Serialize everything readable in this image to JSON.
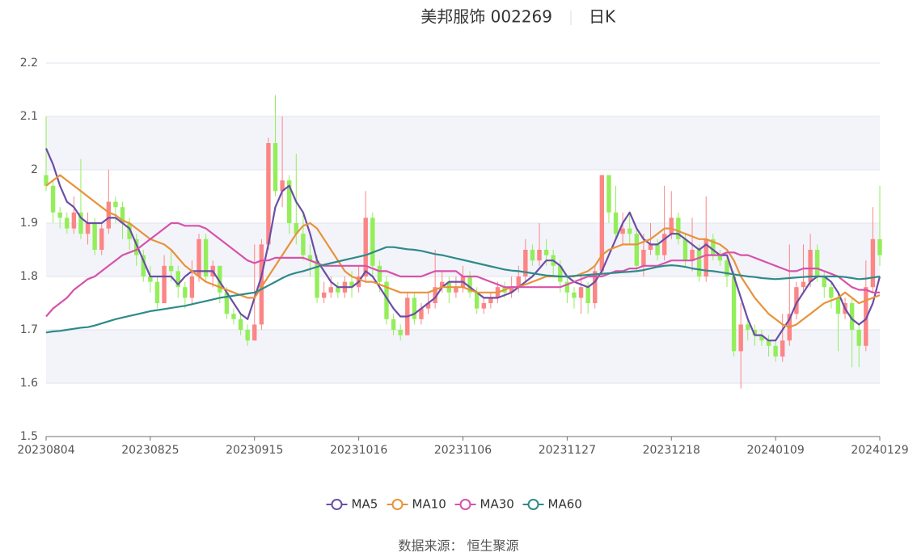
{
  "chart_data": {
    "type": "candlestick",
    "title": "美邦服饰 002269",
    "subtitle": "日K",
    "source": "数据来源：  恒生聚源",
    "categories": [
      "20230804",
      null,
      null,
      null,
      null,
      null,
      null,
      null,
      null,
      null,
      null,
      null,
      null,
      null,
      null,
      "20230825",
      null,
      null,
      null,
      null,
      null,
      null,
      null,
      null,
      null,
      null,
      null,
      null,
      null,
      null,
      "20230915",
      null,
      null,
      null,
      null,
      null,
      null,
      null,
      null,
      null,
      null,
      null,
      null,
      null,
      null,
      "20231016",
      null,
      null,
      null,
      null,
      null,
      null,
      null,
      null,
      null,
      null,
      null,
      null,
      null,
      null,
      "20231106",
      null,
      null,
      null,
      null,
      null,
      null,
      null,
      null,
      null,
      null,
      null,
      null,
      null,
      null,
      "20231127",
      null,
      null,
      null,
      null,
      null,
      null,
      null,
      null,
      null,
      null,
      null,
      null,
      null,
      null,
      "20231218",
      null,
      null,
      null,
      null,
      null,
      null,
      null,
      null,
      null,
      null,
      null,
      null,
      null,
      null,
      "20240109",
      null,
      null,
      null,
      null,
      null,
      null,
      null,
      null,
      null,
      null,
      null,
      null,
      null,
      null,
      "20240129"
    ],
    "open": [
      1.99,
      1.97,
      1.92,
      1.91,
      1.89,
      1.92,
      1.88,
      1.9,
      1.85,
      1.89,
      1.94,
      1.93,
      1.9,
      1.87,
      1.84,
      1.8,
      1.79,
      1.75,
      1.82,
      1.81,
      1.78,
      1.76,
      1.8,
      1.87,
      1.8,
      1.82,
      1.77,
      1.73,
      1.72,
      1.7,
      1.68,
      1.71,
      1.86,
      2.05,
      1.96,
      1.98,
      1.9,
      1.88,
      1.84,
      1.83,
      1.76,
      1.77,
      1.78,
      1.77,
      1.79,
      1.78,
      1.8,
      1.91,
      1.82,
      1.79,
      1.72,
      1.7,
      1.69,
      1.76,
      1.72,
      1.74,
      1.75,
      1.78,
      1.79,
      1.77,
      1.78,
      1.8,
      1.77,
      1.74,
      1.75,
      1.76,
      1.78,
      1.77,
      1.78,
      1.8,
      1.85,
      1.83,
      1.85,
      1.84,
      1.82,
      1.79,
      1.77,
      1.76,
      1.78,
      1.75,
      1.81,
      1.99,
      1.92,
      1.88,
      1.89,
      1.88,
      1.82,
      1.85,
      1.86,
      1.84,
      1.88,
      1.91,
      1.87,
      1.83,
      1.85,
      1.8,
      1.87,
      1.84,
      1.83,
      1.8,
      1.66,
      1.71,
      1.7,
      1.69,
      1.68,
      1.67,
      1.65,
      1.68,
      1.73,
      1.78,
      1.79,
      1.85,
      1.8,
      1.78,
      1.76,
      1.73,
      1.75,
      1.7,
      1.67,
      1.78,
      1.87
    ],
    "high": [
      2.1,
      1.98,
      1.93,
      1.92,
      1.95,
      2.02,
      1.92,
      1.91,
      1.9,
      2.0,
      1.95,
      1.94,
      1.91,
      1.88,
      1.85,
      1.82,
      1.8,
      1.84,
      1.85,
      1.82,
      1.79,
      1.83,
      1.88,
      1.88,
      1.83,
      1.82,
      1.78,
      1.74,
      1.73,
      1.71,
      1.86,
      1.87,
      2.06,
      2.14,
      2.1,
      1.99,
      2.03,
      1.92,
      1.86,
      1.84,
      1.79,
      1.8,
      1.79,
      1.8,
      1.81,
      1.82,
      1.96,
      1.92,
      1.83,
      1.8,
      1.73,
      1.71,
      1.77,
      1.77,
      1.75,
      1.77,
      1.85,
      1.81,
      1.8,
      1.8,
      1.82,
      1.81,
      1.78,
      1.76,
      1.77,
      1.79,
      1.79,
      1.8,
      1.82,
      1.87,
      1.86,
      1.9,
      1.87,
      1.85,
      1.83,
      1.8,
      1.78,
      1.8,
      1.79,
      1.82,
      1.99,
      1.99,
      1.97,
      1.92,
      1.92,
      1.89,
      1.88,
      1.9,
      1.87,
      1.97,
      1.96,
      1.92,
      1.88,
      1.91,
      1.86,
      1.95,
      1.88,
      1.85,
      1.84,
      1.81,
      1.75,
      1.72,
      1.71,
      1.7,
      1.69,
      1.68,
      1.73,
      1.86,
      1.79,
      1.86,
      1.88,
      1.86,
      1.81,
      1.79,
      1.77,
      1.76,
      1.76,
      1.71,
      1.83,
      1.93,
      1.97
    ],
    "low": [
      1.96,
      1.9,
      1.89,
      1.88,
      1.88,
      1.87,
      1.86,
      1.84,
      1.84,
      1.88,
      1.9,
      1.87,
      1.85,
      1.82,
      1.79,
      1.77,
      1.74,
      1.75,
      1.79,
      1.76,
      1.74,
      1.75,
      1.79,
      1.79,
      1.78,
      1.75,
      1.72,
      1.71,
      1.69,
      1.67,
      1.68,
      1.7,
      1.85,
      1.95,
      1.93,
      1.88,
      1.86,
      1.83,
      1.8,
      1.75,
      1.75,
      1.76,
      1.76,
      1.76,
      1.76,
      1.77,
      1.79,
      1.8,
      1.77,
      1.71,
      1.69,
      1.68,
      1.69,
      1.71,
      1.71,
      1.73,
      1.74,
      1.77,
      1.75,
      1.76,
      1.77,
      1.76,
      1.73,
      1.73,
      1.74,
      1.75,
      1.76,
      1.76,
      1.77,
      1.79,
      1.82,
      1.82,
      1.82,
      1.8,
      1.77,
      1.75,
      1.74,
      1.73,
      1.73,
      1.74,
      1.8,
      1.9,
      1.87,
      1.86,
      1.86,
      1.81,
      1.8,
      1.84,
      1.83,
      1.83,
      1.87,
      1.86,
      1.82,
      1.81,
      1.79,
      1.79,
      1.83,
      1.82,
      1.78,
      1.65,
      1.59,
      1.68,
      1.67,
      1.67,
      1.65,
      1.64,
      1.64,
      1.67,
      1.72,
      1.77,
      1.78,
      1.79,
      1.76,
      1.74,
      1.66,
      1.72,
      1.63,
      1.63,
      1.66,
      1.77,
      1.82
    ],
    "close": [
      1.97,
      1.92,
      1.91,
      1.89,
      1.92,
      1.88,
      1.9,
      1.85,
      1.89,
      1.94,
      1.93,
      1.9,
      1.87,
      1.84,
      1.8,
      1.79,
      1.75,
      1.82,
      1.81,
      1.78,
      1.76,
      1.8,
      1.87,
      1.8,
      1.82,
      1.77,
      1.73,
      1.72,
      1.7,
      1.68,
      1.71,
      1.86,
      2.05,
      1.96,
      1.98,
      1.9,
      1.88,
      1.84,
      1.83,
      1.76,
      1.77,
      1.78,
      1.77,
      1.79,
      1.78,
      1.8,
      1.91,
      1.82,
      1.79,
      1.72,
      1.7,
      1.69,
      1.76,
      1.72,
      1.74,
      1.75,
      1.78,
      1.79,
      1.77,
      1.78,
      1.8,
      1.77,
      1.74,
      1.75,
      1.76,
      1.78,
      1.77,
      1.78,
      1.8,
      1.85,
      1.83,
      1.85,
      1.84,
      1.82,
      1.79,
      1.77,
      1.76,
      1.78,
      1.75,
      1.81,
      1.99,
      1.92,
      1.88,
      1.89,
      1.88,
      1.82,
      1.85,
      1.86,
      1.84,
      1.88,
      1.91,
      1.87,
      1.83,
      1.85,
      1.8,
      1.87,
      1.84,
      1.83,
      1.8,
      1.66,
      1.71,
      1.7,
      1.69,
      1.68,
      1.67,
      1.65,
      1.68,
      1.73,
      1.78,
      1.79,
      1.85,
      1.8,
      1.78,
      1.76,
      1.73,
      1.75,
      1.7,
      1.67,
      1.78,
      1.87,
      1.84
    ],
    "up_color": "#fc8585",
    "down_color": "#93ee5a",
    "series": [
      {
        "name": "MA5",
        "color": "#6b4ea6",
        "values": [
          2.04,
          2.01,
          1.97,
          1.94,
          1.93,
          1.91,
          1.9,
          1.9,
          1.9,
          1.91,
          1.91,
          1.9,
          1.89,
          1.86,
          1.83,
          1.8,
          1.8,
          1.8,
          1.8,
          1.785,
          1.8,
          1.81,
          1.81,
          1.81,
          1.81,
          1.79,
          1.77,
          1.75,
          1.73,
          1.72,
          1.76,
          1.8,
          1.86,
          1.93,
          1.96,
          1.97,
          1.94,
          1.92,
          1.88,
          1.83,
          1.81,
          1.79,
          1.78,
          1.78,
          1.78,
          1.79,
          1.81,
          1.8,
          1.78,
          1.76,
          1.74,
          1.725,
          1.725,
          1.73,
          1.74,
          1.75,
          1.76,
          1.78,
          1.79,
          1.79,
          1.79,
          1.78,
          1.77,
          1.76,
          1.76,
          1.76,
          1.765,
          1.77,
          1.78,
          1.79,
          1.8,
          1.815,
          1.83,
          1.83,
          1.82,
          1.8,
          1.79,
          1.785,
          1.78,
          1.79,
          1.81,
          1.84,
          1.87,
          1.9,
          1.92,
          1.89,
          1.87,
          1.86,
          1.86,
          1.87,
          1.88,
          1.88,
          1.87,
          1.86,
          1.85,
          1.86,
          1.85,
          1.84,
          1.84,
          1.8,
          1.76,
          1.72,
          1.69,
          1.69,
          1.68,
          1.68,
          1.7,
          1.72,
          1.75,
          1.77,
          1.79,
          1.8,
          1.8,
          1.79,
          1.77,
          1.74,
          1.72,
          1.71,
          1.72,
          1.75,
          1.8
        ]
      },
      {
        "name": "MA10",
        "color": "#e8923a",
        "values": [
          1.97,
          1.98,
          1.99,
          1.98,
          1.97,
          1.96,
          1.95,
          1.94,
          1.93,
          1.92,
          1.915,
          1.905,
          1.9,
          1.89,
          1.88,
          1.87,
          1.865,
          1.86,
          1.85,
          1.835,
          1.82,
          1.81,
          1.8,
          1.79,
          1.785,
          1.78,
          1.775,
          1.77,
          1.765,
          1.76,
          1.76,
          1.78,
          1.8,
          1.82,
          1.84,
          1.86,
          1.88,
          1.895,
          1.9,
          1.89,
          1.87,
          1.85,
          1.83,
          1.81,
          1.8,
          1.795,
          1.79,
          1.79,
          1.785,
          1.78,
          1.775,
          1.77,
          1.77,
          1.77,
          1.77,
          1.77,
          1.775,
          1.78,
          1.78,
          1.78,
          1.78,
          1.775,
          1.77,
          1.77,
          1.77,
          1.77,
          1.775,
          1.78,
          1.78,
          1.785,
          1.79,
          1.795,
          1.8,
          1.8,
          1.8,
          1.8,
          1.8,
          1.805,
          1.81,
          1.82,
          1.84,
          1.85,
          1.855,
          1.86,
          1.86,
          1.86,
          1.865,
          1.87,
          1.88,
          1.89,
          1.89,
          1.885,
          1.88,
          1.875,
          1.87,
          1.87,
          1.865,
          1.86,
          1.85,
          1.83,
          1.8,
          1.78,
          1.76,
          1.745,
          1.73,
          1.72,
          1.71,
          1.705,
          1.71,
          1.72,
          1.73,
          1.74,
          1.75,
          1.755,
          1.76,
          1.77,
          1.76,
          1.75,
          1.755,
          1.76,
          1.765
        ]
      },
      {
        "name": "MA30",
        "color": "#d752a9",
        "values": [
          1.725,
          1.74,
          1.75,
          1.76,
          1.775,
          1.785,
          1.795,
          1.8,
          1.81,
          1.82,
          1.83,
          1.84,
          1.845,
          1.85,
          1.86,
          1.87,
          1.88,
          1.89,
          1.9,
          1.9,
          1.895,
          1.895,
          1.895,
          1.89,
          1.88,
          1.87,
          1.86,
          1.85,
          1.84,
          1.83,
          1.825,
          1.83,
          1.83,
          1.835,
          1.835,
          1.835,
          1.835,
          1.835,
          1.83,
          1.825,
          1.82,
          1.82,
          1.82,
          1.82,
          1.82,
          1.82,
          1.82,
          1.815,
          1.81,
          1.81,
          1.805,
          1.8,
          1.8,
          1.8,
          1.8,
          1.805,
          1.81,
          1.81,
          1.81,
          1.81,
          1.8,
          1.8,
          1.8,
          1.795,
          1.79,
          1.785,
          1.78,
          1.78,
          1.78,
          1.78,
          1.78,
          1.78,
          1.78,
          1.78,
          1.78,
          1.785,
          1.79,
          1.795,
          1.8,
          1.8,
          1.8,
          1.805,
          1.81,
          1.81,
          1.815,
          1.815,
          1.82,
          1.82,
          1.82,
          1.825,
          1.83,
          1.83,
          1.83,
          1.83,
          1.835,
          1.84,
          1.84,
          1.84,
          1.845,
          1.845,
          1.84,
          1.84,
          1.835,
          1.83,
          1.825,
          1.82,
          1.815,
          1.81,
          1.81,
          1.815,
          1.815,
          1.815,
          1.81,
          1.805,
          1.8,
          1.79,
          1.78,
          1.775,
          1.775,
          1.77,
          1.77
        ]
      },
      {
        "name": "MA60",
        "color": "#2f8a89",
        "values": [
          1.695,
          1.697,
          1.698,
          1.7,
          1.702,
          1.704,
          1.705,
          1.708,
          1.712,
          1.716,
          1.72,
          1.723,
          1.726,
          1.729,
          1.732,
          1.735,
          1.737,
          1.739,
          1.741,
          1.743,
          1.745,
          1.748,
          1.751,
          1.754,
          1.757,
          1.76,
          1.762,
          1.764,
          1.766,
          1.768,
          1.77,
          1.776,
          1.783,
          1.79,
          1.797,
          1.803,
          1.807,
          1.81,
          1.814,
          1.818,
          1.822,
          1.825,
          1.828,
          1.831,
          1.834,
          1.837,
          1.84,
          1.845,
          1.85,
          1.855,
          1.855,
          1.853,
          1.851,
          1.85,
          1.848,
          1.845,
          1.842,
          1.84,
          1.837,
          1.834,
          1.831,
          1.828,
          1.825,
          1.822,
          1.819,
          1.816,
          1.813,
          1.811,
          1.81,
          1.808,
          1.806,
          1.804,
          1.802,
          1.801,
          1.8,
          1.8,
          1.801,
          1.802,
          1.803,
          1.804,
          1.805,
          1.806,
          1.807,
          1.808,
          1.809,
          1.81,
          1.812,
          1.815,
          1.818,
          1.82,
          1.821,
          1.82,
          1.818,
          1.815,
          1.813,
          1.811,
          1.81,
          1.808,
          1.806,
          1.804,
          1.802,
          1.8,
          1.799,
          1.797,
          1.796,
          1.795,
          1.796,
          1.797,
          1.798,
          1.799,
          1.8,
          1.8,
          1.8,
          1.8,
          1.8,
          1.799,
          1.797,
          1.795,
          1.796,
          1.798,
          1.8
        ]
      }
    ],
    "ylim": [
      1.5,
      2.2
    ],
    "yticks": [
      1.5,
      1.6,
      1.7,
      1.8,
      1.9,
      2,
      2.1,
      2.2
    ],
    "grid": true,
    "split_area": true,
    "legend": "bottom"
  }
}
